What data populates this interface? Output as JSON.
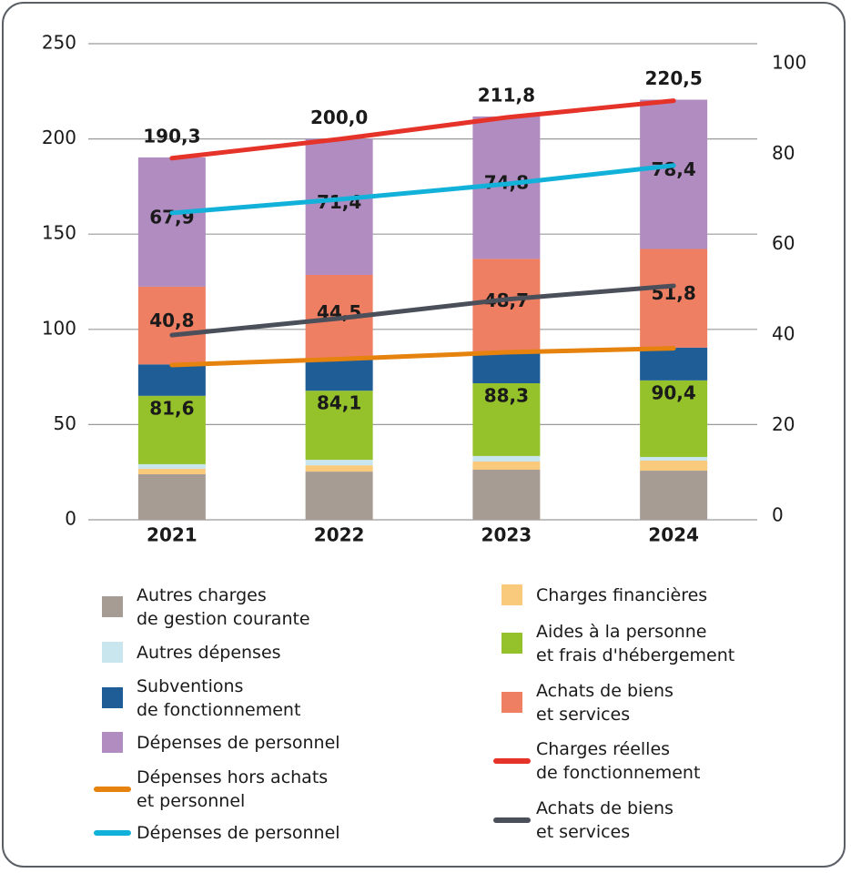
{
  "chart_data": {
    "type": "bar",
    "categories": [
      "2021",
      "2022",
      "2023",
      "2024"
    ],
    "ylim": [
      0,
      250
    ],
    "yticks": [
      0,
      50,
      100,
      150,
      200,
      250
    ],
    "y2lim": [
      0,
      105.2
    ],
    "y2ticks": [
      0,
      20,
      40,
      60,
      80,
      100
    ],
    "grid": true,
    "series": [
      {
        "name": "Autres charges\nde gestion courante",
        "type": "bar",
        "color": "#a69c94",
        "values": [
          23.9,
          25.3,
          26.3,
          25.8
        ]
      },
      {
        "name": "Charges financières",
        "type": "bar",
        "color": "#f9c97c",
        "values": [
          2.9,
          3.3,
          4.3,
          5.3
        ]
      },
      {
        "name": "Autres dépenses",
        "type": "bar",
        "color": "#c9e6ef",
        "values": [
          2.4,
          2.9,
          2.9,
          1.9
        ]
      },
      {
        "name": "Aides à la personne\net frais d'hébergement",
        "type": "bar",
        "color": "#95c12b",
        "values": [
          35.9,
          36.3,
          38.2,
          40.2
        ]
      },
      {
        "name": "Subventions\nde fonctionnement",
        "type": "bar",
        "color": "#1f5d96",
        "values": [
          16.5,
          16.3,
          16.6,
          17.2
        ]
      },
      {
        "name": "Achats de biens\net services",
        "type": "bar",
        "color": "#ef7f63",
        "values": [
          40.8,
          44.5,
          48.7,
          51.8
        ],
        "value_labels": [
          "40,8",
          "44,5",
          "48,7",
          "51,8"
        ]
      },
      {
        "name": "Dépenses de personnel",
        "type": "bar",
        "color": "#b08cc1",
        "values": [
          67.9,
          71.4,
          74.8,
          78.4
        ],
        "value_labels": [
          "67,9",
          "71,4",
          "74,8",
          "78,4"
        ]
      },
      {
        "name": "Dépenses hors achats\net personnel",
        "type": "line",
        "axis": "y2",
        "color": "#e6820e",
        "values": [
          34.2,
          35.5,
          37.0,
          37.9
        ]
      },
      {
        "name": "Dépenses de personnel",
        "type": "line",
        "axis": "y2",
        "color": "#12b1d9",
        "values": [
          67.8,
          70.8,
          74.2,
          78.3
        ]
      },
      {
        "name": "Charges réelles\nde fonctionnement",
        "type": "line",
        "axis": "y2",
        "color": "#e5332a",
        "values": [
          79.9,
          84.1,
          88.9,
          92.6
        ]
      },
      {
        "name": "Achats de biens\net services",
        "type": "line",
        "axis": "y2",
        "color": "#4a4f5a",
        "values": [
          40.8,
          44.5,
          48.7,
          51.7
        ]
      }
    ],
    "subtotals": [
      81.6,
      84.1,
      88.3,
      90.4
    ],
    "subtotal_labels": [
      "81,6",
      "84,1",
      "88,3",
      "90,4"
    ],
    "totals": [
      190.3,
      200.0,
      211.8,
      220.5
    ],
    "total_labels": [
      "190,3",
      "200,0",
      "211,8",
      "220,5"
    ]
  }
}
